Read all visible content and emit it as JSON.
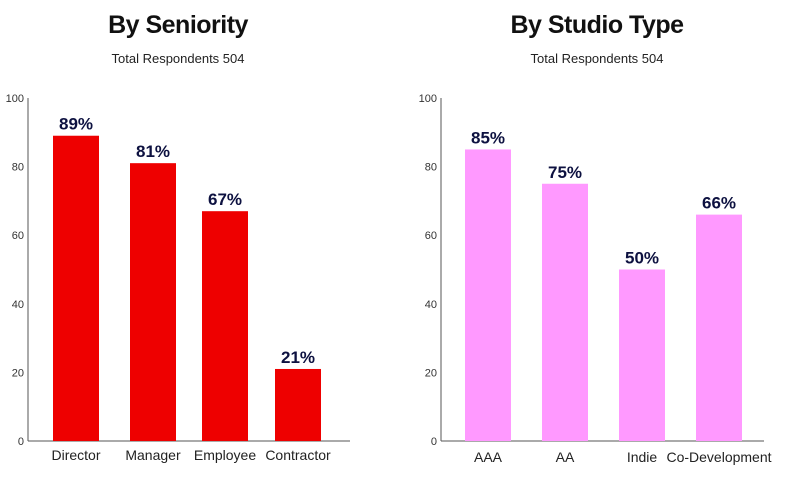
{
  "chart_data": [
    {
      "type": "bar",
      "title": "By Seniority",
      "subtitle": "Total Respondents 504",
      "categories": [
        "Director",
        "Manager",
        "Employee",
        "Contractor"
      ],
      "values": [
        89,
        81,
        67,
        21
      ],
      "data_labels": [
        "89%",
        "81%",
        "67%",
        "21%"
      ],
      "ylim": [
        0,
        100
      ],
      "yticks": [
        0,
        20,
        40,
        60,
        80,
        100
      ],
      "grid": false,
      "legend": "none",
      "bar_color": "#ee0000",
      "label_color": "#0d1140"
    },
    {
      "type": "bar",
      "title": "By Studio Type",
      "subtitle": "Total Respondents 504",
      "categories": [
        "AAA",
        "AA",
        "Indie",
        "Co-Development"
      ],
      "values": [
        85,
        75,
        50,
        66
      ],
      "data_labels": [
        "85%",
        "75%",
        "50%",
        "66%"
      ],
      "ylim": [
        0,
        100
      ],
      "yticks": [
        0,
        20,
        40,
        60,
        80,
        100
      ],
      "grid": false,
      "legend": "none",
      "bar_color": "#ff99ff",
      "label_color": "#0d1140"
    }
  ]
}
